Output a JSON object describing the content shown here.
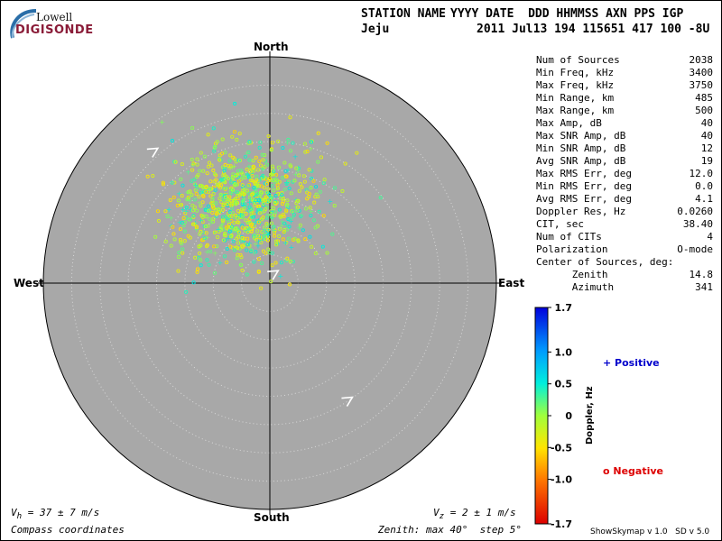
{
  "logo": {
    "top": "Lowell",
    "bottom": "DIGISONDE"
  },
  "header": {
    "line1_left": "STATION NAME",
    "line1_right": "YYYY DATE  DDD HHMMSS AXN PPS IGP",
    "line2_left": "Jeju",
    "line2_right": "2011 Jul13 194 115651 417 100 -8U"
  },
  "cardinals": {
    "north": "North",
    "south": "South",
    "east": "East",
    "west": "West"
  },
  "stats": [
    {
      "label": "Num of Sources",
      "value": "2038"
    },
    {
      "label": "Min Freq, kHz",
      "value": "3400"
    },
    {
      "label": "Max Freq, kHz",
      "value": "3750"
    },
    {
      "label": "Min Range, km",
      "value": "485"
    },
    {
      "label": "Max Range, km",
      "value": "500"
    },
    {
      "label": "Max Amp, dB",
      "value": "40"
    },
    {
      "label": "Max SNR Amp, dB",
      "value": "40"
    },
    {
      "label": "Min SNR Amp, dB",
      "value": "12"
    },
    {
      "label": "Avg SNR Amp, dB",
      "value": "19"
    },
    {
      "label": "Max RMS Err, deg",
      "value": "12.0"
    },
    {
      "label": "Min RMS Err, deg",
      "value": "0.0"
    },
    {
      "label": "Avg RMS Err, deg",
      "value": "4.1"
    },
    {
      "label": "Doppler Res, Hz",
      "value": "0.0260"
    },
    {
      "label": "CIT, sec",
      "value": "38.40"
    },
    {
      "label": "Num of CITs",
      "value": "4"
    },
    {
      "label": "Polarization",
      "value": "O-mode"
    },
    {
      "label": "Center of Sources, deg:",
      "value": ""
    },
    {
      "label": "      Zenith",
      "value": "14.8"
    },
    {
      "label": "      Azimuth",
      "value": "341"
    }
  ],
  "colorbar": {
    "ticks": [
      "1.7",
      "1.0",
      "0.5",
      "0",
      "-0.5",
      "-1.0",
      "-1.7"
    ],
    "tick_values": [
      1.7,
      1.0,
      0.5,
      0,
      -0.5,
      -1.0,
      -1.7
    ],
    "label": "Doppler, Hz",
    "positive": "+ Positive",
    "negative": "o Negative",
    "positive_color": "#0000cc",
    "negative_color": "#dd0000"
  },
  "footer": {
    "vh_main": "V",
    "vh_sub": "h",
    "vh_rest": " = 37 ± 7 m/s",
    "vz_main": "V",
    "vz_sub": "z",
    "vz_rest": " = 2 ± 1 m/s",
    "coords": "Compass coordinates",
    "zenith": "Zenith: max 40°  step 5°",
    "version": "ShowSkymap v 1.0   SD v 5.0"
  },
  "chart_data": {
    "type": "scatter",
    "coordinate_system": "polar-skymap",
    "zenith_max_deg": 40,
    "zenith_step_deg": 5,
    "plot_background": "#a8a8a8",
    "center_of_sources": {
      "zenith_deg": 14.8,
      "azimuth_deg": 341
    },
    "num_sources": 2038,
    "cluster": {
      "zenith_center_deg": 14.8,
      "azimuth_center_deg": 341,
      "zenith_spread_deg": 5.5,
      "doppler_range_hz": [
        -0.6,
        0.6
      ]
    },
    "velocity_arrows": [
      {
        "zenith_deg": 31,
        "azimuth_deg": 318
      },
      {
        "zenith_deg": 1.5,
        "azimuth_deg": 20
      },
      {
        "zenith_deg": 25,
        "azimuth_deg": 147
      }
    ],
    "colorbar_range_hz": [
      -1.7,
      1.7
    ]
  }
}
